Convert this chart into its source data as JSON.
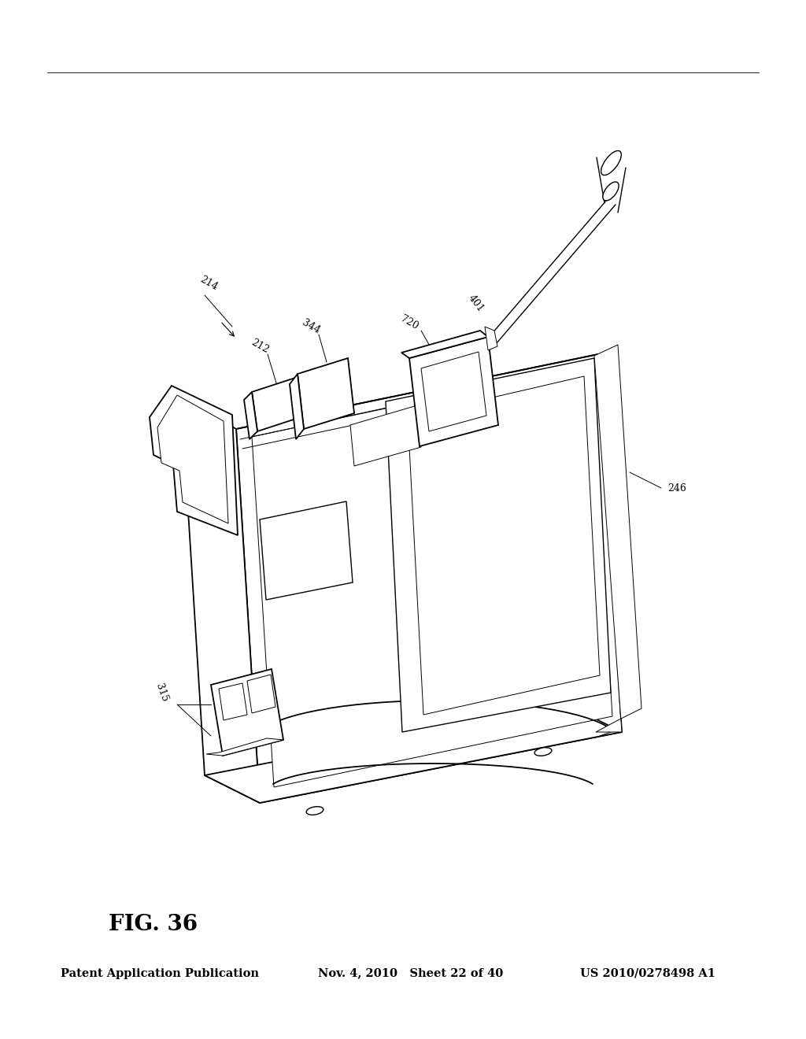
{
  "background_color": "#ffffff",
  "header_left": "Patent Application Publication",
  "header_center": "Nov. 4, 2010   Sheet 22 of 40",
  "header_right": "US 2010/0278498 A1",
  "figure_label": "FIG. 36",
  "header_fontsize": 10.5,
  "fig_label_fontsize": 20,
  "lc": "black",
  "lw_main": 1.3,
  "lw_thin": 0.7,
  "lw_med": 1.0,
  "label_fontsize": 9
}
